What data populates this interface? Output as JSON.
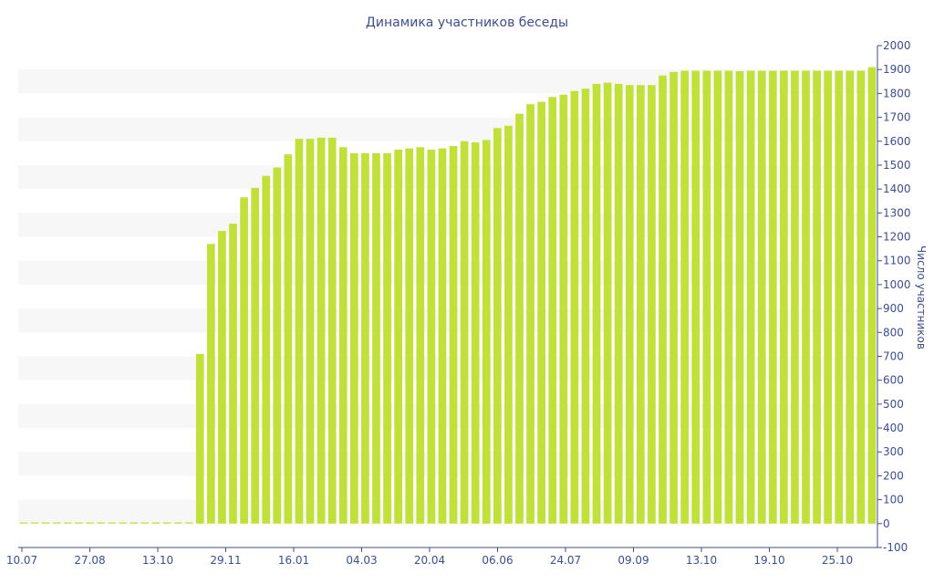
{
  "chart_data": {
    "type": "bar",
    "title": "Динамика участников беседы",
    "ylabel": "Число участников",
    "xlabel": "",
    "ylim": [
      -100,
      2000
    ],
    "yticks": [
      -100,
      0,
      100,
      200,
      300,
      400,
      500,
      600,
      700,
      800,
      900,
      1000,
      1100,
      1200,
      1300,
      1400,
      1500,
      1600,
      1700,
      1800,
      1900,
      2000
    ],
    "y_axis_side": "right",
    "x_tick_labels": [
      "10.07",
      "27.08",
      "13.10",
      "29.11",
      "16.01",
      "04.03",
      "20.04",
      "06.06",
      "24.07",
      "09.09",
      "13.10",
      "19.10",
      "25.10"
    ],
    "grid": "alternating horizontal bands",
    "bar_color": "#c1e03a",
    "band_color": "#f7f7f7",
    "text_color": "#3e4e8c",
    "values": [
      5,
      5,
      5,
      5,
      5,
      5,
      5,
      5,
      5,
      5,
      5,
      5,
      5,
      5,
      5,
      5,
      710,
      1170,
      1225,
      1255,
      1365,
      1405,
      1455,
      1490,
      1545,
      1610,
      1610,
      1615,
      1615,
      1575,
      1550,
      1550,
      1550,
      1550,
      1565,
      1570,
      1575,
      1565,
      1570,
      1580,
      1600,
      1595,
      1605,
      1655,
      1665,
      1715,
      1755,
      1765,
      1785,
      1795,
      1810,
      1820,
      1840,
      1845,
      1840,
      1835,
      1835,
      1835,
      1875,
      1890,
      1895,
      1895,
      1895,
      1895,
      1895,
      1893,
      1895,
      1895,
      1895,
      1895,
      1895,
      1895,
      1895,
      1895,
      1895,
      1895,
      1895,
      1910
    ]
  }
}
